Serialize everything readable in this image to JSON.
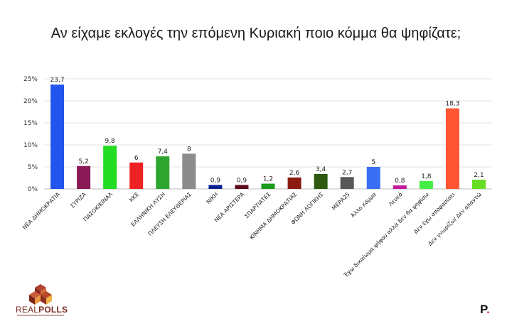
{
  "title": "Αν είχαμε εκλογές την επόμενη Κυριακή ποιο κόμμα θα ψηφίζατε;",
  "logo": {
    "brand_a": "REAL",
    "brand_b": "POLLS"
  },
  "publisher_mark": {
    "letter": "P",
    "dot": "."
  },
  "chart_data": {
    "type": "bar",
    "title": "Αν είχαμε εκλογές την επόμενη Κυριακή ποιο κόμμα θα ψηφίζατε;",
    "xlabel": "",
    "ylabel": "",
    "ylim": [
      0,
      25
    ],
    "yticks": [
      "0%",
      "5%",
      "10%",
      "15%",
      "20%",
      "25%"
    ],
    "grid": true,
    "categories": [
      "ΝΕΑ ΔΗΜΟΚΡΑΤΙΑ",
      "ΣΥΡΙΖΑ",
      "ΠΑΣΟΚ/ΚΙΝΑΛ",
      "ΚΚΕ",
      "ΕΛΛΗΝΙΚΗ ΛΥΣΗ",
      "ΠΛΕΥΣΗ ΕΛΕΥΘΕΡΙΑΣ",
      "ΝΙΚΗ",
      "ΝΕΑ ΑΡΙΣΤΕΡΑ",
      "ΣΠΑΡΤΙΑΤΕΣ",
      "ΚΙΝΗΜΑ ΔΗΜΟΚΡΑΤΙΑΣ",
      "ΦΩΝΗ ΛΟΓΙΚΗΣ",
      "ΜΕΡΑ25",
      "Άλλο κόμμα",
      "Λευκό",
      "Έχω δικαίωμα ψήφου αλλά δεν θα ψηφίσω",
      "Δεν έχω αποφασίσει",
      "Δεν γνωρίζω/ Δεν απαντώ"
    ],
    "values": [
      23.7,
      5.2,
      9.8,
      6,
      7.4,
      8,
      0.9,
      0.9,
      1.2,
      2.6,
      3.4,
      2.7,
      5,
      0.8,
      1.8,
      18.3,
      2.1
    ],
    "value_labels": [
      "23,7",
      "5,2",
      "9,8",
      "6",
      "7,4",
      "8",
      "0,9",
      "0,9",
      "1,2",
      "2,6",
      "3,4",
      "2,7",
      "5",
      "0,8",
      "1,8",
      "18,3",
      "2,1"
    ],
    "colors": [
      "#2255ee",
      "#8a1a55",
      "#22dd22",
      "#ee2222",
      "#2ea52e",
      "#8c8c8c",
      "#0a1f8f",
      "#5a0a1a",
      "#1a9a1a",
      "#8b1a10",
      "#2d5a10",
      "#585858",
      "#3a6ff5",
      "#c21a9a",
      "#44ee44",
      "#ff5533",
      "#66dd22"
    ]
  }
}
